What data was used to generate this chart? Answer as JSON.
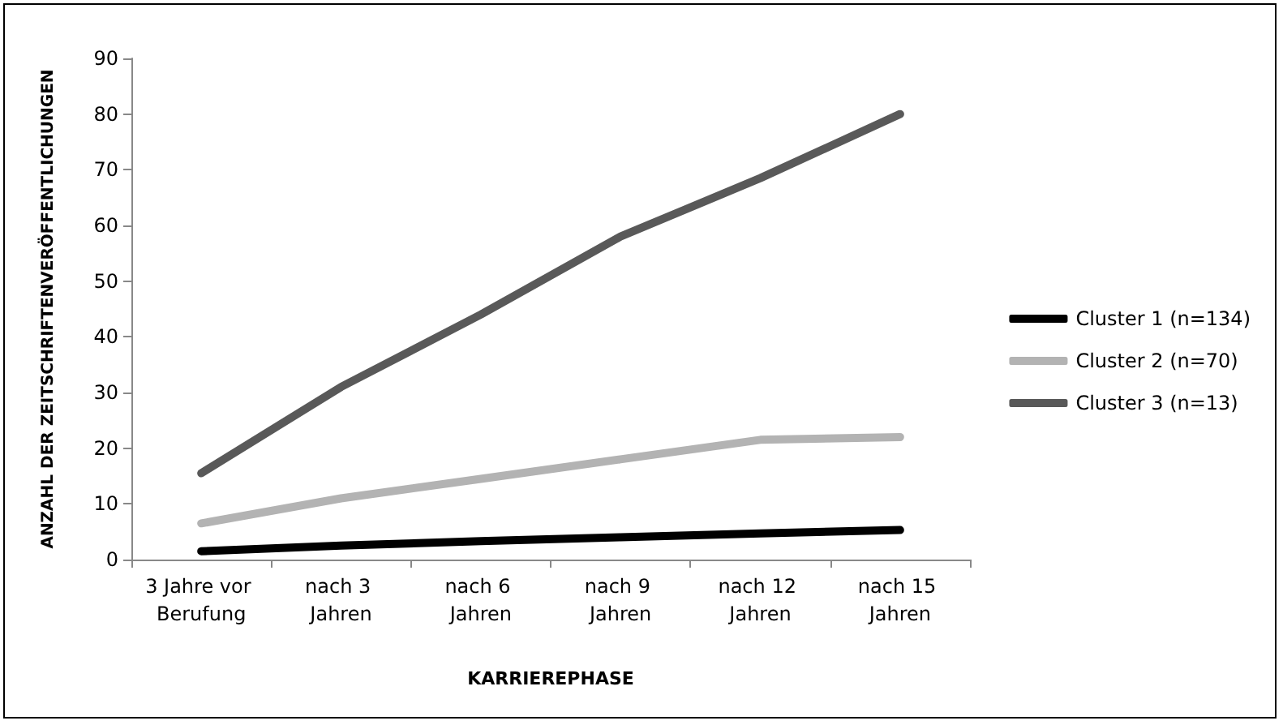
{
  "chart_data": {
    "type": "line",
    "xlabel": "KARRIEREPHASE",
    "ylabel": "ANZAHL DER ZEITSCHRIFTENVERÖFFENTLICHUNGEN",
    "categories": [
      "3 Jahre vor Berufung",
      "nach 3 Jahren",
      "nach 6 Jahren",
      "nach 9 Jahren",
      "nach 12 Jahren",
      "nach 15 Jahren"
    ],
    "series": [
      {
        "name": "Cluster 1 (n=134)",
        "color": "#000000",
        "values": [
          1.5,
          2.5,
          3.3,
          4,
          4.7,
          5.3
        ]
      },
      {
        "name": "Cluster 2 (n=70)",
        "color": "#b3b3b3",
        "values": [
          6.5,
          11,
          14.5,
          18,
          21.5,
          22
        ]
      },
      {
        "name": "Cluster 3 (n=13)",
        "color": "#595959",
        "values": [
          15.5,
          31,
          44,
          58,
          68.5,
          80
        ]
      }
    ],
    "ylim": [
      0,
      90
    ],
    "yticks": [
      0,
      10,
      20,
      30,
      40,
      50,
      60,
      70,
      80,
      90
    ],
    "grid": false,
    "legend": "right",
    "marker": "none",
    "line_style": "solid"
  }
}
